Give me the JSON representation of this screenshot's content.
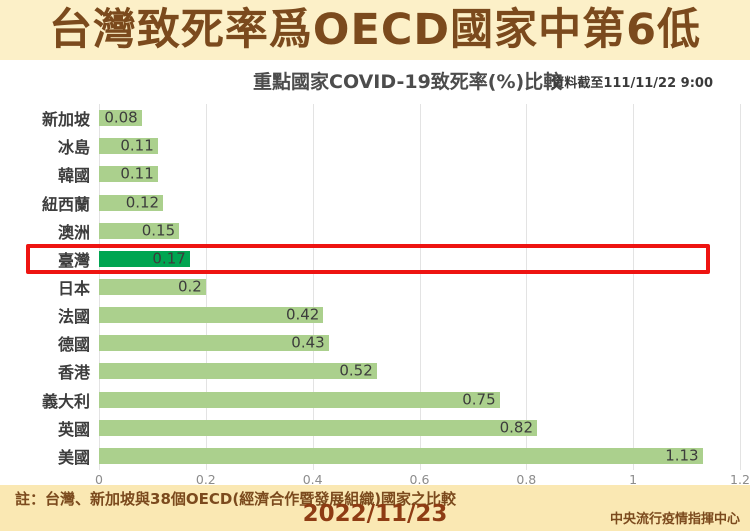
{
  "header": {
    "title": "台灣致死率爲OECD國家中第6低",
    "subtitle": "重點國家COVID-19致死率(%)比較",
    "data_note": "資料截至111/11/22 9:00"
  },
  "chart_data": {
    "type": "bar",
    "orientation": "horizontal",
    "title": "重點國家COVID-19致死率(%)比較",
    "categories": [
      "新加坡",
      "冰島",
      "韓國",
      "紐西蘭",
      "澳洲",
      "臺灣",
      "日本",
      "法國",
      "德國",
      "香港",
      "義大利",
      "英國",
      "美國"
    ],
    "values": [
      0.08,
      0.11,
      0.11,
      0.12,
      0.15,
      0.17,
      0.2,
      0.42,
      0.43,
      0.52,
      0.75,
      0.82,
      1.13
    ],
    "value_labels": [
      "0.08",
      "0.11",
      "0.11",
      "0.12",
      "0.15",
      "0.17",
      "0.2",
      "0.42",
      "0.43",
      "0.52",
      "0.75",
      "0.82",
      "1.13"
    ],
    "highlight_index": 5,
    "highlight_category": "臺灣",
    "xlim": [
      0,
      1.2
    ],
    "x_ticks": [
      "0",
      "0.2",
      "0.4",
      "0.6",
      "0.8",
      "1",
      "1.2"
    ],
    "xlabel": "",
    "ylabel": "",
    "grid": true,
    "legend_position": "none",
    "bar_color": "#abd08d",
    "highlight_bar_color": "#00a551"
  },
  "footer": {
    "note": "註：台灣、新加坡與38個OECD(經濟合作暨發展組織)國家之比較",
    "date": "2022/11/23",
    "agency": "中央流行疫情指揮中心"
  },
  "colors": {
    "band_top": "#fcf0c8",
    "band_bottom": "#fae8b3",
    "title_brown": "#7b4a1d",
    "date_brown": "#8e3c14",
    "highlight_red": "#ee1411",
    "grid": "#e3e3e3"
  }
}
